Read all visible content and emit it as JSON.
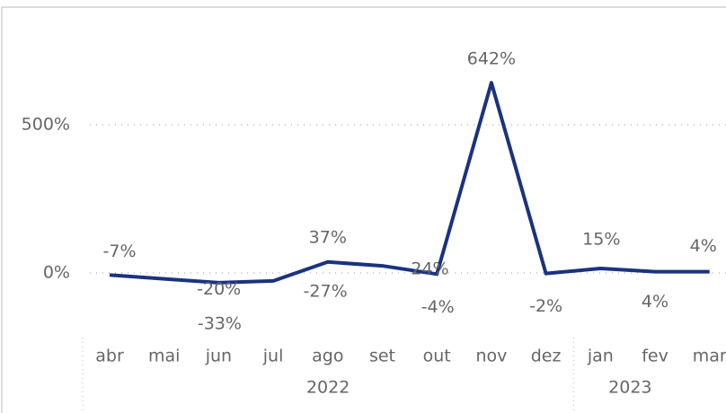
{
  "chart_data": {
    "type": "line",
    "categories": [
      "abr",
      "mai",
      "jun",
      "jul",
      "ago",
      "set",
      "out",
      "nov",
      "dez",
      "jan",
      "fev",
      "mar"
    ],
    "x_groups": [
      {
        "label": "2022",
        "size": 9
      },
      {
        "label": "2023",
        "size": 3
      }
    ],
    "series": [
      {
        "color": "#1b3281",
        "values": [
          -7,
          -20,
          -33,
          -27,
          37,
          24,
          -4,
          642,
          -2,
          15,
          4,
          4
        ],
        "value_labels": [
          "-7%",
          "-20%",
          "-33%",
          "-27%",
          "37%",
          "24%",
          "-4%",
          "642%",
          "-2%",
          "15%",
          "4%",
          "4%"
        ]
      }
    ],
    "ylim": [
      -200,
      850
    ],
    "yticks": [
      {
        "value": 0,
        "label": "0%"
      },
      {
        "value": 500,
        "label": "500%"
      }
    ],
    "grid": true
  }
}
